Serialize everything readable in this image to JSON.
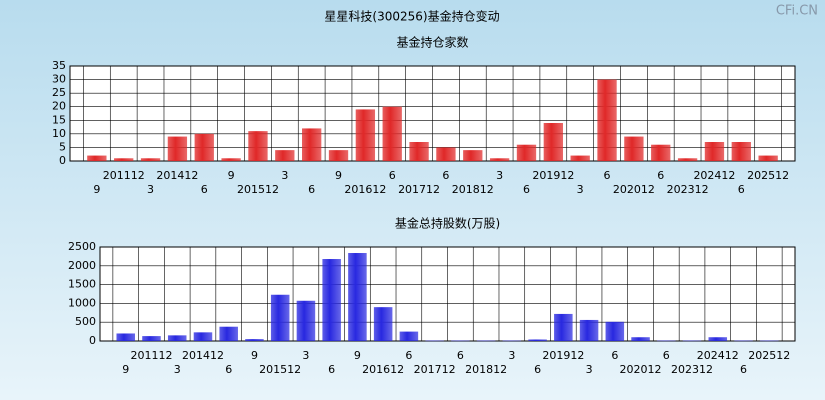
{
  "title": "星星科技(300256)基金持仓变动",
  "watermark": "CFi.CN",
  "chart_data": [
    {
      "type": "bar",
      "title": "基金持仓家数",
      "color": "#e02828",
      "grid": true,
      "categories": [
        "9",
        "201112",
        "3",
        "201412",
        "6",
        "9",
        "201512",
        "3",
        "6",
        "9",
        "201612",
        "6",
        "201712",
        "6",
        "201812",
        "3",
        "6",
        "201912",
        "3",
        "6",
        "202012",
        "6",
        "202312",
        "202412",
        "6",
        "202512"
      ],
      "values": [
        2,
        1,
        1,
        9,
        10,
        1,
        11,
        4,
        12,
        4,
        19,
        20,
        7,
        5,
        4,
        1,
        6,
        14,
        2,
        30,
        9,
        6,
        1,
        7,
        7,
        2
      ],
      "ylim": [
        0,
        35
      ],
      "yticks": [
        0,
        5,
        10,
        15,
        20,
        25,
        30,
        35
      ]
    },
    {
      "type": "bar",
      "title": "基金总持股数(万股)",
      "color": "#2828e0",
      "grid": true,
      "categories": [
        "9",
        "201112",
        "3",
        "201412",
        "6",
        "9",
        "201512",
        "3",
        "6",
        "9",
        "201612",
        "6",
        "201712",
        "6",
        "201812",
        "3",
        "6",
        "201912",
        "3",
        "6",
        "202012",
        "6",
        "202312",
        "202412",
        "6",
        "202512"
      ],
      "values": [
        200,
        130,
        150,
        230,
        380,
        50,
        1230,
        1070,
        2180,
        2340,
        900,
        250,
        10,
        10,
        10,
        10,
        40,
        720,
        560,
        510,
        100,
        10,
        10,
        100,
        10,
        10
      ],
      "ylim": [
        0,
        2500
      ],
      "yticks": [
        0,
        500,
        1000,
        1500,
        2000,
        2500
      ]
    }
  ]
}
